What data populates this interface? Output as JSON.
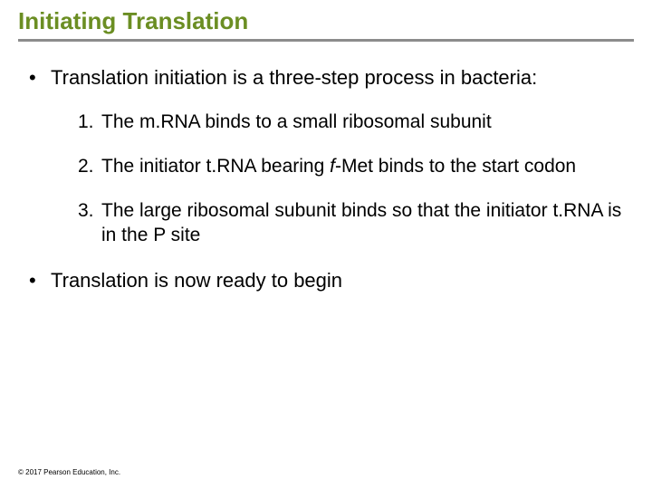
{
  "colors": {
    "title": "#6b8e23",
    "underline": "#8c8c8c",
    "body_text": "#000000",
    "background": "#ffffff"
  },
  "typography": {
    "title_fontsize": 26,
    "body_fontsize": 22,
    "list_fontsize": 21,
    "copyright_fontsize": 8,
    "font_family": "Arial"
  },
  "title": "Initiating Translation",
  "intro": "Translation initiation is a three-step process in bacteria:",
  "steps": {
    "n1": "1.",
    "s1": "The m.RNA binds to a small ribosomal subunit",
    "n2": "2.",
    "s2a": "The initiator t.RNA bearing ",
    "s2b": "f",
    "s2c": "-Met binds to the start codon",
    "n3": "3.",
    "s3": "The large ribosomal subunit binds so that the initiator t.RNA is in the P site"
  },
  "outro": "Translation is now ready to begin",
  "copyright": "© 2017 Pearson Education, Inc."
}
